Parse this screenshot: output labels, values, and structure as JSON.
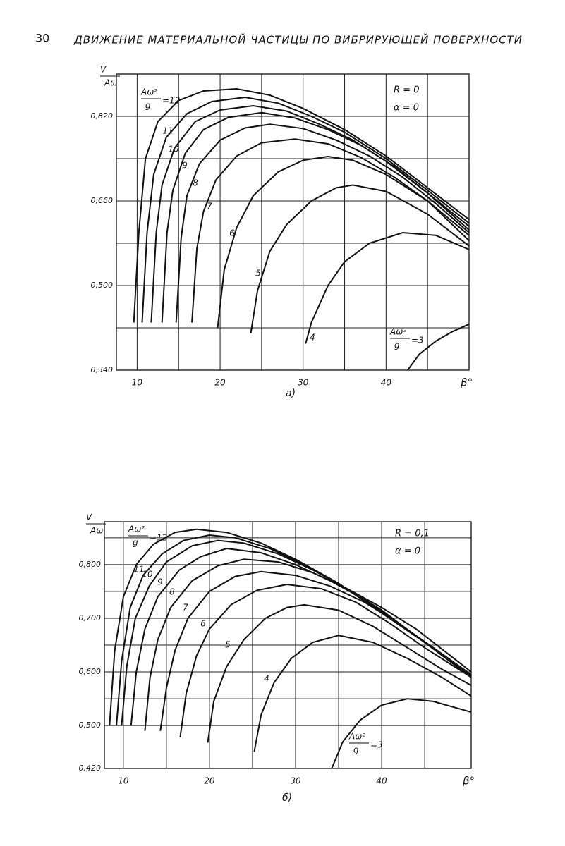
{
  "page_number": "30",
  "running_title": "ДВИЖЕНИЕ МАТЕРИАЛЬНОЙ ЧАСТИЦЫ ПО ВИБРИРУЮЩЕЙ ПОВЕРХНОСТИ",
  "chart_data": [
    {
      "type": "line",
      "caption": "а)",
      "x_label": "β°",
      "y_label": {
        "numerator": "V",
        "denominator": "Aω"
      },
      "parameter": {
        "numerator": "Aω²",
        "denominator": "g",
        "sign": "="
      },
      "annotations": [
        "R = 0",
        "α = 0"
      ],
      "xlim": [
        7.5,
        50
      ],
      "ylim": [
        0.34,
        0.9
      ],
      "xticks": [
        10,
        20,
        30,
        40
      ],
      "minor_xticks": [
        15,
        25,
        35,
        45
      ],
      "yticks": [
        {
          "value": 0.34,
          "label": "0,340"
        },
        {
          "value": 0.5,
          "label": "0,500"
        },
        {
          "value": 0.66,
          "label": "0,660"
        },
        {
          "value": 0.82,
          "label": "0,820"
        }
      ],
      "minor_yticks": [
        0.42,
        0.58,
        0.74,
        0.9
      ],
      "grid": true,
      "color": "#111111",
      "series": [
        {
          "name": "12",
          "x": [
            9.6,
            10.2,
            11,
            12.5,
            15,
            18,
            22,
            26,
            30,
            35,
            40,
            45,
            50
          ],
          "values": [
            0.43,
            0.6,
            0.74,
            0.81,
            0.85,
            0.868,
            0.872,
            0.86,
            0.835,
            0.795,
            0.745,
            0.685,
            0.625
          ]
        },
        {
          "name": "11",
          "x": [
            10.6,
            11.2,
            12,
            13.5,
            16,
            19,
            23,
            27,
            31,
            35,
            40,
            45,
            50
          ],
          "values": [
            0.43,
            0.6,
            0.71,
            0.78,
            0.825,
            0.848,
            0.856,
            0.845,
            0.82,
            0.79,
            0.74,
            0.68,
            0.618
          ]
        },
        {
          "name": "10",
          "x": [
            11.7,
            12.3,
            13,
            14.5,
            17,
            20,
            24,
            28,
            32,
            36,
            40,
            45,
            50
          ],
          "values": [
            0.43,
            0.6,
            0.69,
            0.76,
            0.81,
            0.832,
            0.84,
            0.83,
            0.805,
            0.775,
            0.735,
            0.675,
            0.612
          ]
        },
        {
          "name": "9",
          "x": [
            13,
            13.6,
            14.3,
            15.8,
            18,
            21,
            25,
            29,
            33,
            37,
            41,
            45,
            50
          ],
          "values": [
            0.43,
            0.6,
            0.68,
            0.75,
            0.795,
            0.818,
            0.827,
            0.817,
            0.795,
            0.765,
            0.725,
            0.675,
            0.605
          ]
        },
        {
          "name": "8",
          "x": [
            14.7,
            15.3,
            16,
            17.5,
            20,
            23,
            26,
            30,
            34,
            38,
            42,
            46,
            50
          ],
          "values": [
            0.43,
            0.59,
            0.67,
            0.73,
            0.775,
            0.798,
            0.805,
            0.797,
            0.775,
            0.745,
            0.705,
            0.655,
            0.6
          ]
        },
        {
          "name": "7",
          "x": [
            16.6,
            17.2,
            18,
            19.5,
            22,
            25,
            29,
            33,
            37,
            41,
            45,
            50
          ],
          "values": [
            0.43,
            0.57,
            0.64,
            0.7,
            0.745,
            0.77,
            0.777,
            0.768,
            0.742,
            0.705,
            0.66,
            0.595
          ]
        },
        {
          "name": "6",
          "x": [
            19.7,
            20.5,
            22,
            24,
            27,
            30,
            33,
            36,
            40,
            45,
            50
          ],
          "values": [
            0.42,
            0.53,
            0.61,
            0.67,
            0.715,
            0.737,
            0.744,
            0.737,
            0.71,
            0.66,
            0.585
          ]
        },
        {
          "name": "5",
          "x": [
            23.7,
            24.5,
            26,
            28,
            31,
            34,
            36,
            40,
            45,
            50
          ],
          "values": [
            0.41,
            0.49,
            0.565,
            0.615,
            0.66,
            0.685,
            0.69,
            0.678,
            0.635,
            0.575
          ]
        },
        {
          "name": "4",
          "x": [
            30.3,
            31,
            33,
            35,
            38,
            42,
            46,
            50
          ],
          "values": [
            0.39,
            0.43,
            0.5,
            0.545,
            0.58,
            0.6,
            0.595,
            0.568
          ]
        },
        {
          "name": "3",
          "x": [
            42.6,
            44,
            46,
            48,
            50
          ],
          "values": [
            0.34,
            0.37,
            0.395,
            0.413,
            0.427
          ]
        }
      ]
    },
    {
      "type": "line",
      "caption": "б)",
      "x_label": "β°",
      "y_label": {
        "numerator": "V",
        "denominator": "Aω"
      },
      "parameter": {
        "numerator": "Aω²",
        "denominator": "g",
        "sign": "="
      },
      "annotations": [
        "R = 0,1",
        "α = 0"
      ],
      "xlim": [
        7.8,
        50.4
      ],
      "ylim": [
        0.42,
        0.88
      ],
      "xticks": [
        10,
        20,
        30,
        40
      ],
      "minor_xticks": [
        15,
        25,
        35,
        45
      ],
      "yticks": [
        {
          "value": 0.42,
          "label": "0,420"
        },
        {
          "value": 0.5,
          "label": "0,500"
        },
        {
          "value": 0.6,
          "label": "0,600"
        },
        {
          "value": 0.7,
          "label": "0,700"
        },
        {
          "value": 0.8,
          "label": "0,800"
        }
      ],
      "minor_yticks": [
        0.55,
        0.65,
        0.75,
        0.85
      ],
      "grid": true,
      "color": "#111111",
      "series": [
        {
          "name": "12",
          "x": [
            8.4,
            9,
            10,
            11.5,
            13.5,
            16,
            18.5,
            22,
            26,
            30,
            35,
            40,
            45,
            50.4
          ],
          "values": [
            0.5,
            0.64,
            0.74,
            0.8,
            0.838,
            0.86,
            0.866,
            0.86,
            0.84,
            0.81,
            0.765,
            0.71,
            0.655,
            0.59
          ]
        },
        {
          "name": "11",
          "x": [
            9.2,
            9.8,
            10.8,
            12.3,
            14.5,
            17,
            20,
            23,
            27,
            31,
            35,
            40,
            45,
            50.4
          ],
          "values": [
            0.5,
            0.62,
            0.72,
            0.78,
            0.82,
            0.845,
            0.855,
            0.85,
            0.83,
            0.8,
            0.765,
            0.71,
            0.655,
            0.59
          ]
        },
        {
          "name": "10",
          "x": [
            9.8,
            10.4,
            11.4,
            13,
            15,
            18,
            21,
            24,
            28,
            32,
            36,
            40,
            45,
            50.4
          ],
          "values": [
            0.5,
            0.61,
            0.7,
            0.76,
            0.805,
            0.835,
            0.845,
            0.84,
            0.82,
            0.79,
            0.755,
            0.715,
            0.655,
            0.59
          ]
        },
        {
          "name": "9",
          "x": [
            10.9,
            11.5,
            12.5,
            14,
            16.5,
            19,
            22,
            26,
            30,
            34,
            38,
            42,
            46,
            50.4
          ],
          "values": [
            0.5,
            0.6,
            0.68,
            0.74,
            0.79,
            0.815,
            0.83,
            0.822,
            0.8,
            0.77,
            0.735,
            0.69,
            0.645,
            0.592
          ]
        },
        {
          "name": "8",
          "x": [
            12.5,
            13.1,
            14,
            15.5,
            18,
            21,
            24,
            28,
            32,
            36,
            40,
            44,
            48,
            50.4
          ],
          "values": [
            0.49,
            0.59,
            0.66,
            0.72,
            0.77,
            0.798,
            0.81,
            0.805,
            0.785,
            0.755,
            0.72,
            0.68,
            0.63,
            0.6
          ]
        },
        {
          "name": "7",
          "x": [
            14.3,
            15,
            16,
            17.5,
            20,
            23,
            26,
            30,
            34,
            38,
            42,
            46,
            50.4
          ],
          "values": [
            0.49,
            0.57,
            0.64,
            0.7,
            0.75,
            0.778,
            0.787,
            0.78,
            0.76,
            0.73,
            0.69,
            0.645,
            0.595
          ]
        },
        {
          "name": "6",
          "x": [
            16.6,
            17.3,
            18.5,
            20,
            22.5,
            25.5,
            29,
            33,
            37,
            41,
            45,
            50.4
          ],
          "values": [
            0.478,
            0.56,
            0.63,
            0.68,
            0.725,
            0.752,
            0.763,
            0.755,
            0.73,
            0.69,
            0.645,
            0.59
          ]
        },
        {
          "name": "5",
          "x": [
            19.8,
            20.5,
            22,
            24,
            26.5,
            29,
            31,
            35,
            39,
            43,
            47,
            50.4
          ],
          "values": [
            0.468,
            0.545,
            0.61,
            0.66,
            0.7,
            0.72,
            0.725,
            0.715,
            0.685,
            0.645,
            0.605,
            0.575
          ]
        },
        {
          "name": "4",
          "x": [
            25.2,
            26,
            27.5,
            29.5,
            32,
            35,
            39,
            43,
            47,
            50.4
          ],
          "values": [
            0.451,
            0.52,
            0.58,
            0.625,
            0.655,
            0.668,
            0.655,
            0.625,
            0.59,
            0.555
          ]
        },
        {
          "name": "3",
          "x": [
            34.2,
            35.5,
            37.5,
            40,
            43,
            46,
            50.4
          ],
          "values": [
            0.42,
            0.47,
            0.51,
            0.538,
            0.55,
            0.545,
            0.525
          ]
        }
      ]
    }
  ]
}
